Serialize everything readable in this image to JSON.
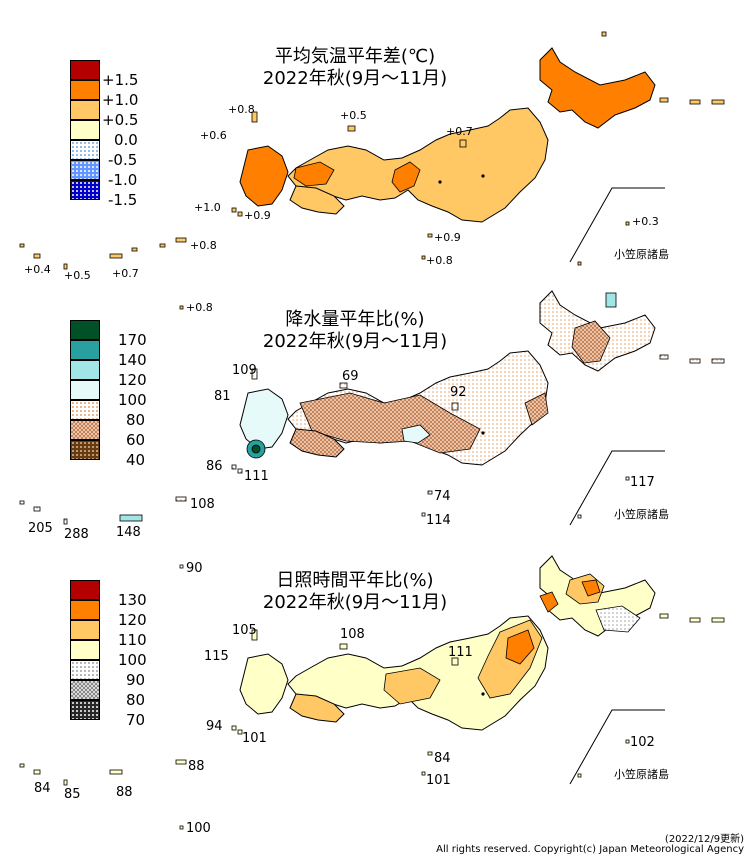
{
  "panels": [
    {
      "title_line1": "平均気温平年差(℃)",
      "title_line2": "2022年秋(9月～11月)",
      "legend": [
        {
          "label": "+1.5",
          "color": "#b40000",
          "pattern": "solid"
        },
        {
          "label": "+1.0",
          "color": "#ff8000",
          "pattern": "solid"
        },
        {
          "label": "+0.5",
          "color": "#ffc864",
          "pattern": "solid"
        },
        {
          "label": "0.0",
          "color": "#ffffc8",
          "pattern": "solid"
        },
        {
          "label": "-0.5",
          "color": "#c8e6ff",
          "pattern": "dots-light"
        },
        {
          "label": "-1.0",
          "color": "#6496ff",
          "pattern": "dots"
        },
        {
          "label": "-1.5",
          "color": "#0000c8",
          "pattern": "dots"
        }
      ],
      "labels": {
        "tsushima": "+0.8",
        "goto": "+0.6",
        "oki": "+0.5",
        "sado": "+0.7",
        "koshiki": "+1.0",
        "yakushima": "+0.9",
        "hachijo_n": "+0.9",
        "hachijo_s": "+0.8",
        "amami": "+0.8",
        "yonaguni": "+0.4",
        "miyako": "+0.5",
        "okinawa": "+0.7",
        "daito": "+0.8",
        "chichijima": "+0.3"
      },
      "inset_label": "小笠原諸島"
    },
    {
      "title_line1": "降水量平年比(%)",
      "title_line2": "2022年秋(9月～11月)",
      "legend": [
        {
          "label": "170",
          "color": "#005028",
          "pattern": "solid"
        },
        {
          "label": "140",
          "color": "#28a0a0",
          "pattern": "solid"
        },
        {
          "label": "120",
          "color": "#a0e6e6",
          "pattern": "solid"
        },
        {
          "label": "100",
          "color": "#e6fafa",
          "pattern": "solid"
        },
        {
          "label": "80",
          "color": "#e6b48c",
          "pattern": "dots-light"
        },
        {
          "label": "60",
          "color": "#c8825a",
          "pattern": "checker"
        },
        {
          "label": "40",
          "color": "#643c14",
          "pattern": "dots"
        }
      ],
      "labels": {
        "tsushima": "109",
        "goto": "81",
        "oki": "69",
        "sado": "92",
        "koshiki": "86",
        "yakushima": "111",
        "hachijo_n": "74",
        "hachijo_s": "114",
        "amami": "108",
        "yonaguni": "205",
        "miyako": "288",
        "okinawa": "148",
        "daito": "90",
        "chichijima": "117"
      },
      "inset_label": "小笠原諸島"
    },
    {
      "title_line1": "日照時間平年比(%)",
      "title_line2": "2022年秋(9月～11月)",
      "legend": [
        {
          "label": "130",
          "color": "#b40000",
          "pattern": "solid"
        },
        {
          "label": "120",
          "color": "#ff8000",
          "pattern": "solid"
        },
        {
          "label": "110",
          "color": "#ffc864",
          "pattern": "solid"
        },
        {
          "label": "100",
          "color": "#ffffc8",
          "pattern": "solid"
        },
        {
          "label": "90",
          "color": "#e6e6e6",
          "pattern": "dots-light"
        },
        {
          "label": "80",
          "color": "#a0a0a0",
          "pattern": "checker"
        },
        {
          "label": "70",
          "color": "#282828",
          "pattern": "dots"
        }
      ],
      "labels": {
        "tsushima": "105",
        "goto": "115",
        "oki": "108",
        "sado": "111",
        "koshiki": "94",
        "yakushima": "101",
        "hachijo_n": "84",
        "hachijo_s": "101",
        "amami": "88",
        "yonaguni": "84",
        "miyako": "85",
        "okinawa": "88",
        "daito": "100",
        "chichijima": "102"
      },
      "inset_label": "小笠原諸島"
    }
  ],
  "footer": {
    "date": "(2022/12/9更新)",
    "copyright": "All rights reserved. Copyright(c) Japan Meteorological Agency"
  }
}
